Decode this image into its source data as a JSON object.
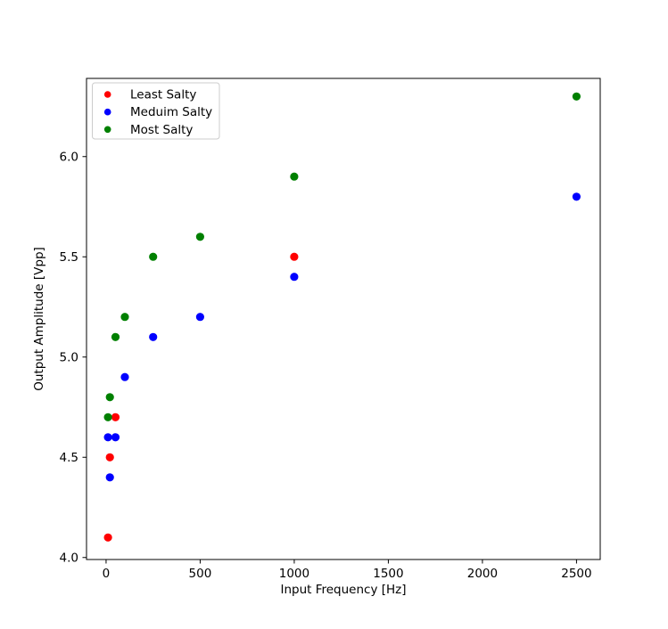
{
  "chart_data": {
    "type": "scatter",
    "title": "",
    "xlabel": "Input Frequency [Hz]",
    "ylabel": "Output Amplitude [Vpp]",
    "xlim": [
      -104,
      2626
    ],
    "ylim": [
      3.99,
      6.39
    ],
    "xticks": [
      0,
      500,
      1000,
      1500,
      2000,
      2500
    ],
    "xticklabels": [
      "0",
      "500",
      "1000",
      "1500",
      "2000",
      "2500"
    ],
    "yticks": [
      4.0,
      4.5,
      5.0,
      5.5,
      6.0
    ],
    "yticklabels": [
      "4.0",
      "4.5",
      "5.0",
      "5.5",
      "6.0"
    ],
    "grid": false,
    "legend_position": "upper left",
    "marker": "circle",
    "series": [
      {
        "name": "Least Salty",
        "color": "#ff0000",
        "points": [
          [
            10,
            4.1
          ],
          [
            20,
            4.5
          ],
          [
            50,
            4.7
          ],
          [
            1000,
            5.5
          ]
        ]
      },
      {
        "name": "Meduim Salty",
        "color": "#0000ff",
        "points": [
          [
            10,
            4.6
          ],
          [
            20,
            4.4
          ],
          [
            50,
            4.6
          ],
          [
            100,
            4.9
          ],
          [
            250,
            5.1
          ],
          [
            500,
            5.2
          ],
          [
            1000,
            5.4
          ],
          [
            2500,
            5.8
          ]
        ]
      },
      {
        "name": "Most Salty",
        "color": "#008000",
        "points": [
          [
            10,
            4.7
          ],
          [
            20,
            4.8
          ],
          [
            50,
            5.1
          ],
          [
            100,
            5.2
          ],
          [
            250,
            5.5
          ],
          [
            500,
            5.6
          ],
          [
            1000,
            5.9
          ],
          [
            2500,
            6.3
          ]
        ]
      }
    ]
  }
}
